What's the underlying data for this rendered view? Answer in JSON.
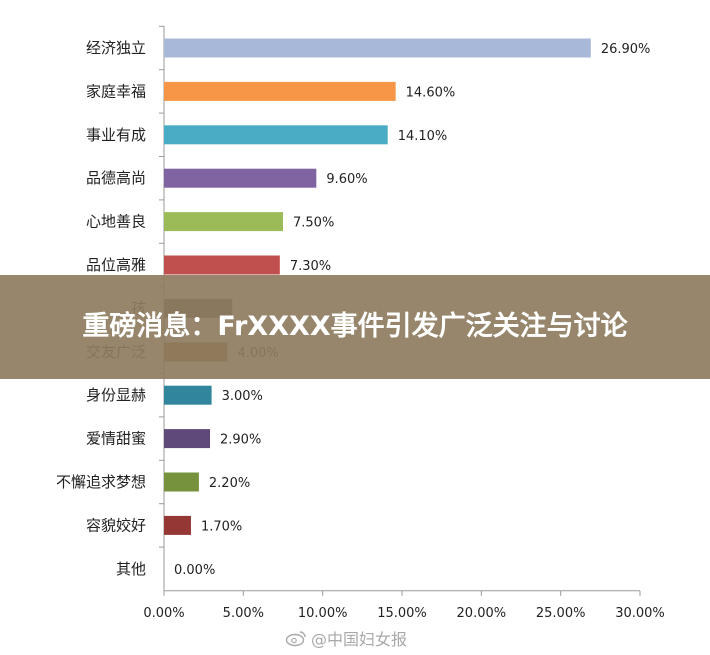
{
  "chart_data": {
    "type": "bar",
    "orientation": "horizontal",
    "categories": [
      "经济独立",
      "家庭幸福",
      "事业有成",
      "品德高尚",
      "心地善良",
      "品位高雅",
      "孩",
      "交友广泛",
      "身份显赫",
      "爱情甜蜜",
      "不懈追求梦想",
      "容貌姣好",
      "其他"
    ],
    "values": [
      26.9,
      14.6,
      14.1,
      9.6,
      7.5,
      7.3,
      4.3,
      4.0,
      3.0,
      2.9,
      2.2,
      1.7,
      0.0
    ],
    "value_labels": [
      "26.90%",
      "14.60%",
      "14.10%",
      "9.60%",
      "7.50%",
      "7.30%",
      "",
      "4.00%",
      "3.00%",
      "2.90%",
      "2.20%",
      "1.70%",
      "0.00%"
    ],
    "colors": [
      "#a8b8d8",
      "#f79646",
      "#4bacc6",
      "#8064a2",
      "#9bbb59",
      "#c0504d",
      "#4f4f4f",
      "#8b5a2b",
      "#31859c",
      "#5f497a",
      "#76923c",
      "#953735",
      "#888888"
    ],
    "xlim": [
      0,
      30
    ],
    "xticks": [
      0,
      5,
      10,
      15,
      20,
      25,
      30
    ],
    "xtick_labels": [
      "0.00%",
      "5.00%",
      "10.00%",
      "15.00%",
      "20.00%",
      "25.00%",
      "30.00%"
    ],
    "grid": false,
    "title": "",
    "xlabel": "",
    "ylabel": ""
  },
  "banner": {
    "headline": "重磅消息：FrXXXX事件引发广泛关注与讨论"
  },
  "watermark": {
    "text": "@中国妇女报",
    "icon": "weibo-icon"
  }
}
